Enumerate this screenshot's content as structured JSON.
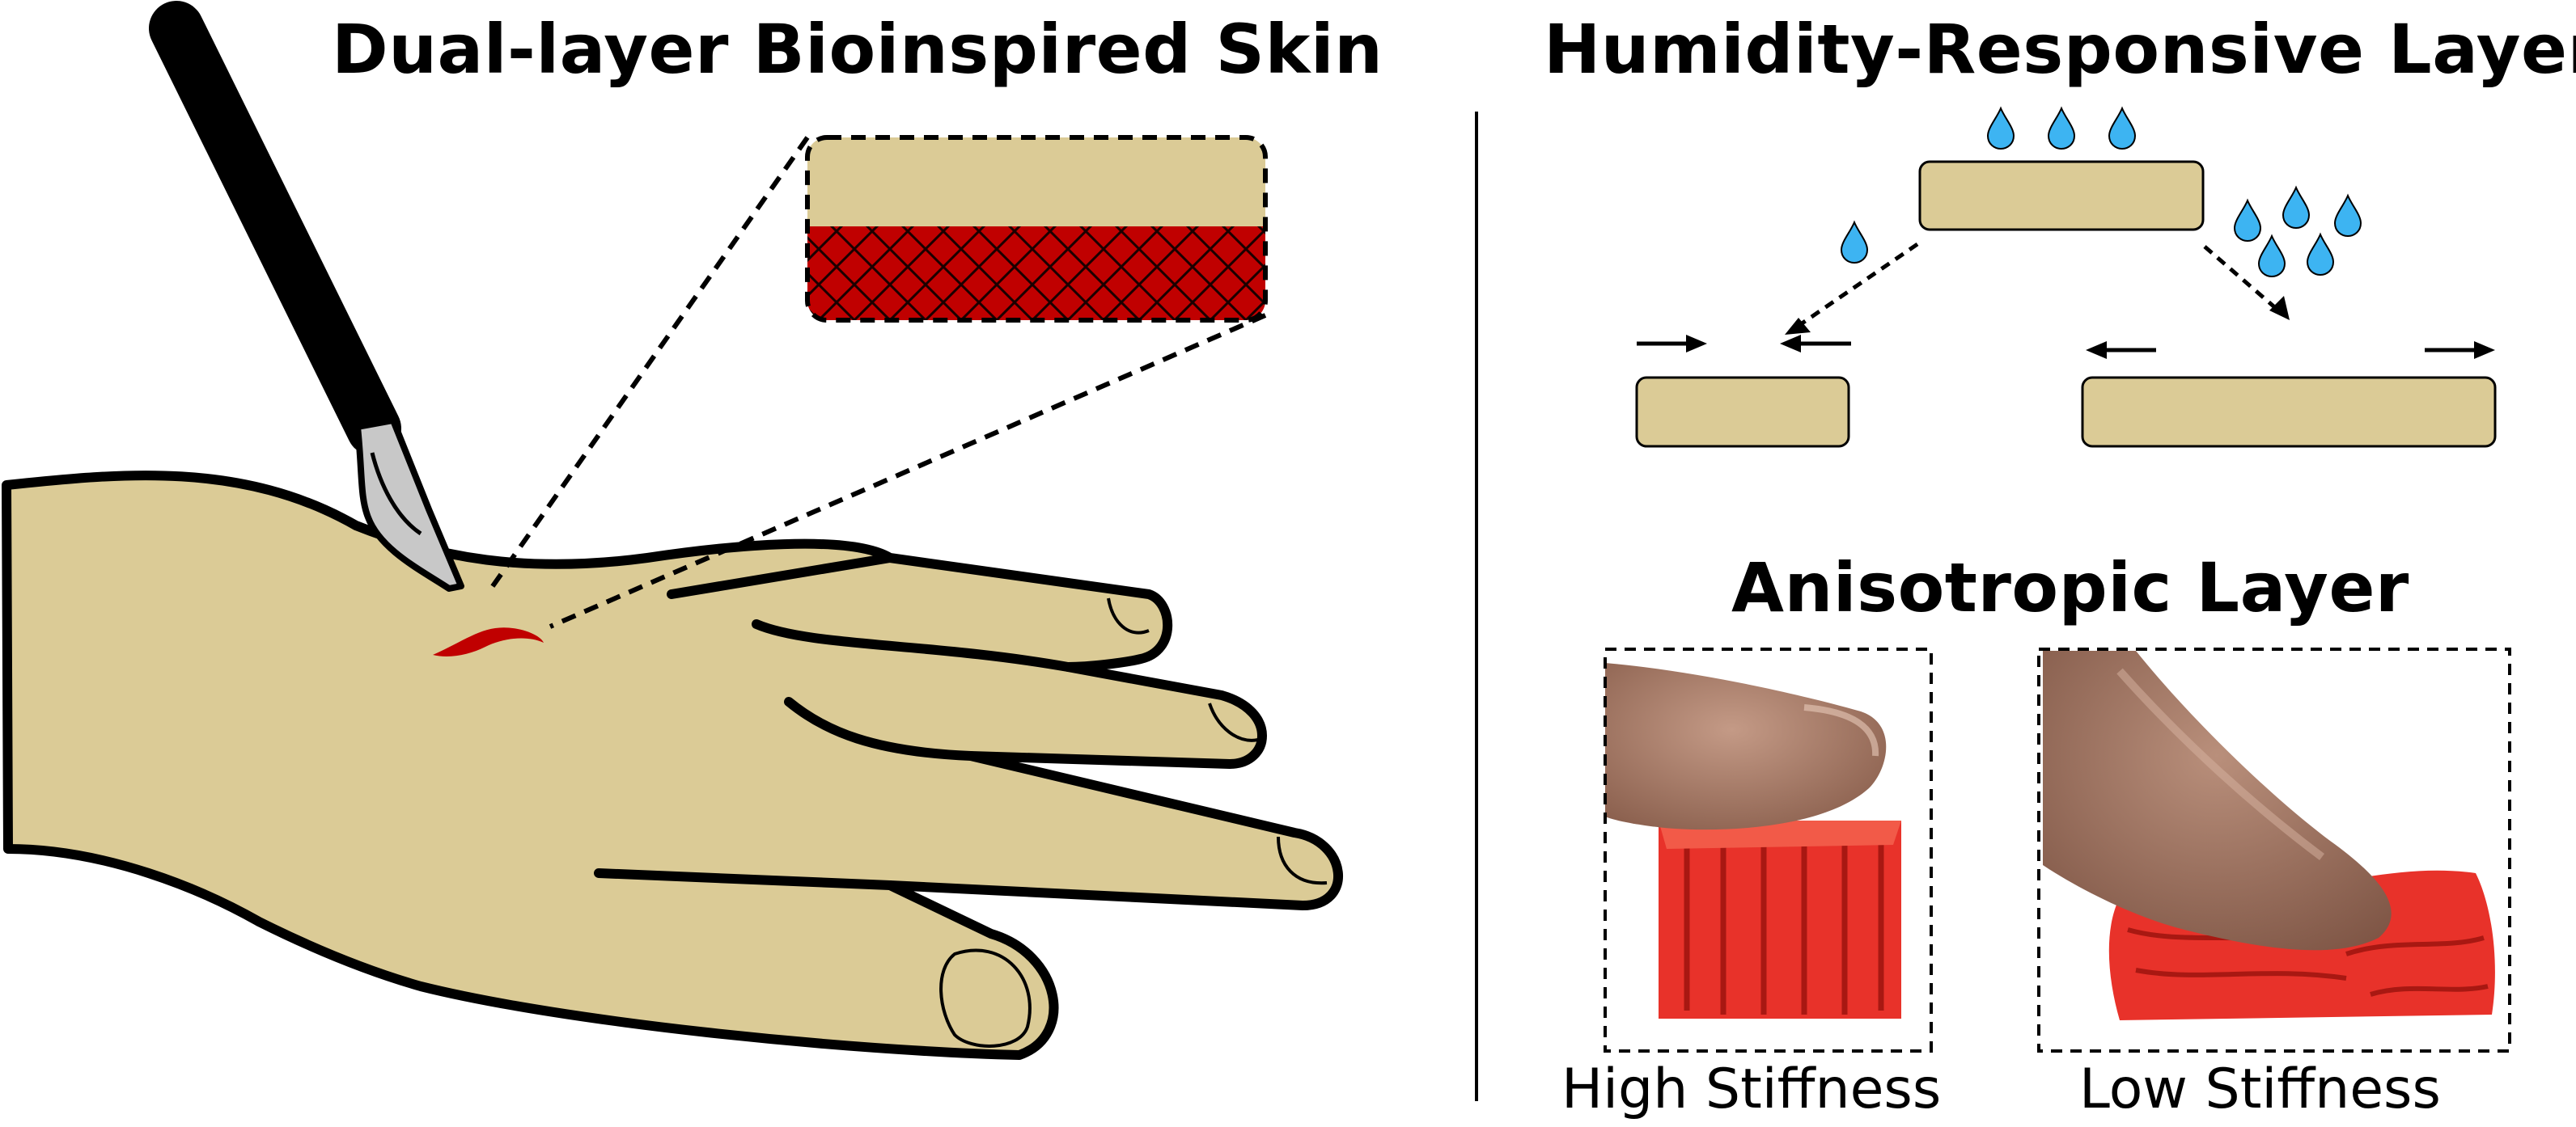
{
  "left_panel": {
    "title": "Dual-layer Bioinspired Skin"
  },
  "right_panel": {
    "humidity_title": "Humidity-Responsive Layer",
    "anisotropic_title": "Anisotropic Layer",
    "photos": [
      {
        "caption": "High Stiffness"
      },
      {
        "caption": "Low Stiffness"
      }
    ]
  },
  "colors": {
    "skin": "#dbcb96",
    "blood_red": "#c00000",
    "water_drop": "#3db4f2",
    "print_red": "#e8322a",
    "finger": "#a77b68"
  }
}
